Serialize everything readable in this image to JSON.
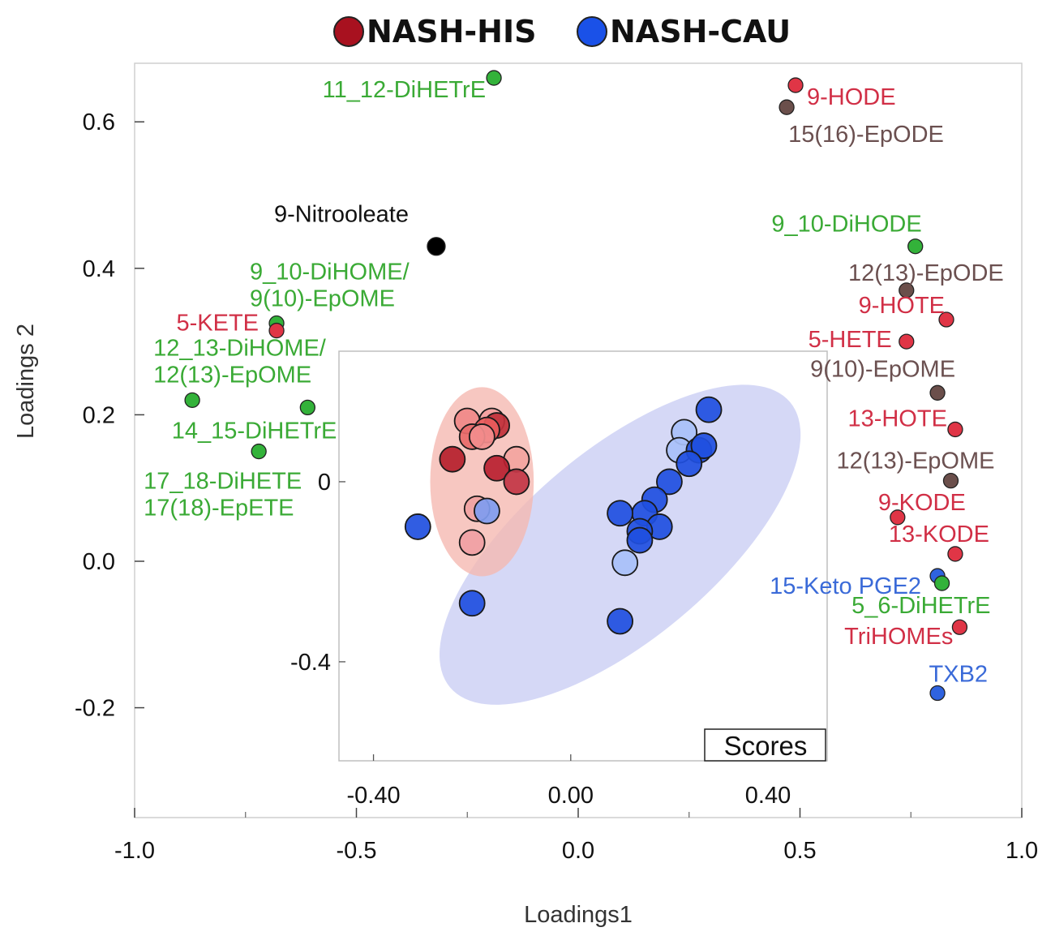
{
  "chart_data": {
    "type": "scatter",
    "title": "",
    "legend": {
      "placement": "top-center",
      "entries": [
        {
          "name": "NASH-HIS",
          "color": "#a8111f"
        },
        {
          "name": "NASH-CAU",
          "color": "#1a51e8"
        }
      ]
    },
    "loadings": {
      "xlabel": "Loadings1",
      "ylabel": "Loadings 2",
      "xlim": [
        -1.0,
        1.0
      ],
      "ylim": [
        -0.35,
        0.68
      ],
      "xticks": [
        -1.0,
        -0.5,
        0.0,
        0.5,
        1.0
      ],
      "xtick_labels": [
        "-1.0",
        "-0.5",
        "0.0",
        "0.5",
        "1.0"
      ],
      "xticks_minor": [
        -0.75,
        -0.25,
        0.25,
        0.75
      ],
      "yticks": [
        -0.2,
        0.0,
        0.2,
        0.4,
        0.6
      ],
      "ytick_labels": [
        "-0.2",
        "0.0",
        "0.2",
        "0.4",
        "0.6"
      ],
      "points": [
        {
          "label": "11_12-DiHETrE",
          "x": -0.19,
          "y": 0.66,
          "color": "#33b23a",
          "label_color": "#3aaa35"
        },
        {
          "label": "9-HODE",
          "x": 0.49,
          "y": 0.65,
          "color": "#e03546",
          "label_color": "#d12f46"
        },
        {
          "label": "15(16)-EpODE",
          "x": 0.47,
          "y": 0.62,
          "color": "#6b4f4b",
          "label_color": "#6b5050"
        },
        {
          "label": "9-Nitrooleate",
          "x": -0.32,
          "y": 0.43,
          "color": "#000000",
          "label_color": "#111111"
        },
        {
          "label": "9_10-DiHODE",
          "x": 0.76,
          "y": 0.43,
          "color": "#33b23a",
          "label_color": "#3aaa35"
        },
        {
          "label": "12(13)-EpODE",
          "x": 0.74,
          "y": 0.37,
          "color": "#6b4f4b",
          "label_color": "#6b5050"
        },
        {
          "label": "9_10-DiHOME/\n9(10)-EpOME",
          "x": -0.68,
          "y": 0.325,
          "color": "#33b23a",
          "label_color": "#3aaa35"
        },
        {
          "label": "5-KETE",
          "x": -0.68,
          "y": 0.315,
          "color": "#e03546",
          "label_color": "#d12f46"
        },
        {
          "label": "9-HOTE",
          "x": 0.83,
          "y": 0.33,
          "color": "#e03546",
          "label_color": "#d12f46"
        },
        {
          "label": "5-HETE",
          "x": 0.74,
          "y": 0.3,
          "color": "#e03546",
          "label_color": "#d12f46"
        },
        {
          "label": "12_13-DiHOME/\n12(13)-EpOME",
          "x": -0.87,
          "y": 0.22,
          "color": "#33b23a",
          "label_color": "#3aaa35"
        },
        {
          "label": "14_15-DiHETrE",
          "x": -0.61,
          "y": 0.21,
          "color": "#33b23a",
          "label_color": "#3aaa35"
        },
        {
          "label": "17_18-DiHETE\n17(18)-EpETE",
          "x": -0.72,
          "y": 0.15,
          "color": "#33b23a",
          "label_color": "#3aaa35"
        },
        {
          "label": "9(10)-EpOME",
          "x": 0.81,
          "y": 0.23,
          "color": "#6b4f4b",
          "label_color": "#6b5050"
        },
        {
          "label": "13-HOTE",
          "x": 0.85,
          "y": 0.18,
          "color": "#e03546",
          "label_color": "#d12f46"
        },
        {
          "label": "12(13)-EpOME",
          "x": 0.84,
          "y": 0.11,
          "color": "#6b4f4b",
          "label_color": "#6b5050"
        },
        {
          "label": "9-KODE",
          "x": 0.72,
          "y": 0.06,
          "color": "#e03546",
          "label_color": "#d12f46"
        },
        {
          "label": "13-KODE",
          "x": 0.85,
          "y": 0.01,
          "color": "#e03546",
          "label_color": "#d12f46"
        },
        {
          "label": "15-Keto PGE2",
          "x": 0.81,
          "y": -0.02,
          "color": "#2f63e0",
          "label_color": "#3a6ad8"
        },
        {
          "label": "5_6-DiHETrE",
          "x": 0.82,
          "y": -0.03,
          "color": "#33b23a",
          "label_color": "#3aaa35"
        },
        {
          "label": "TriHOMEs",
          "x": 0.86,
          "y": -0.09,
          "color": "#e03546",
          "label_color": "#d12f46"
        },
        {
          "label": "TXB2",
          "x": 0.81,
          "y": -0.18,
          "color": "#2f63e0",
          "label_color": "#3a6ad8"
        }
      ]
    },
    "scores": {
      "title": "Scores",
      "xlim": [
        -0.47,
        0.52
      ],
      "ylim": [
        -0.62,
        0.29
      ],
      "xticks": [
        -0.4,
        0.0,
        0.4
      ],
      "xtick_labels": [
        "-0.40",
        "0.00",
        "0.40"
      ],
      "yticks": [
        0.0,
        -0.4
      ],
      "ytick_labels": [
        "0",
        "-0.4"
      ],
      "ellipses": [
        {
          "group": "NASH-HIS",
          "cx": -0.18,
          "cy": 0.0,
          "rx": 0.105,
          "ry": 0.21,
          "angle": 0,
          "color": "#f5b7b0"
        },
        {
          "group": "NASH-CAU",
          "cx": 0.1,
          "cy": -0.14,
          "rx": 0.45,
          "ry": 0.21,
          "angle": 40,
          "color": "#c9cdf3"
        }
      ],
      "points": [
        {
          "group": "NASH-HIS",
          "x": -0.21,
          "y": 0.135,
          "color": "#f08888"
        },
        {
          "group": "NASH-HIS",
          "x": -0.16,
          "y": 0.135,
          "color": "#f4a0a0"
        },
        {
          "group": "NASH-HIS",
          "x": -0.15,
          "y": 0.125,
          "color": "#c0303a"
        },
        {
          "group": "NASH-HIS",
          "x": -0.17,
          "y": 0.115,
          "color": "#e85c5c"
        },
        {
          "group": "NASH-HIS",
          "x": -0.2,
          "y": 0.1,
          "color": "#e86a6a"
        },
        {
          "group": "NASH-HIS",
          "x": -0.18,
          "y": 0.1,
          "color": "#f28d8d"
        },
        {
          "group": "NASH-HIS",
          "x": -0.24,
          "y": 0.05,
          "color": "#b5202c"
        },
        {
          "group": "NASH-HIS",
          "x": -0.11,
          "y": 0.05,
          "color": "#f3a4a0"
        },
        {
          "group": "NASH-HIS",
          "x": -0.15,
          "y": 0.03,
          "color": "#b92030"
        },
        {
          "group": "NASH-HIS",
          "x": -0.11,
          "y": 0.0,
          "color": "#c23545"
        },
        {
          "group": "NASH-HIS",
          "x": -0.19,
          "y": -0.06,
          "color": "#f0a2a2"
        },
        {
          "group": "NASH-HIS",
          "x": -0.2,
          "y": -0.135,
          "color": "#f0a0a4"
        },
        {
          "group": "NASH-CAU",
          "x": -0.17,
          "y": -0.065,
          "color": "#7f9cf0"
        },
        {
          "group": "NASH-CAU",
          "x": -0.31,
          "y": -0.1,
          "color": "#1f4fe0"
        },
        {
          "group": "NASH-CAU",
          "x": -0.2,
          "y": -0.27,
          "color": "#1f4fe0"
        },
        {
          "group": "NASH-CAU",
          "x": 0.28,
          "y": 0.16,
          "color": "#1f4fe0"
        },
        {
          "group": "NASH-CAU",
          "x": 0.23,
          "y": 0.11,
          "color": "#a8c0f8"
        },
        {
          "group": "NASH-CAU",
          "x": 0.22,
          "y": 0.07,
          "color": "#a8c0f8"
        },
        {
          "group": "NASH-CAU",
          "x": 0.26,
          "y": 0.07,
          "color": "#1f4fe0"
        },
        {
          "group": "NASH-CAU",
          "x": 0.27,
          "y": 0.08,
          "color": "#1f4fe0"
        },
        {
          "group": "NASH-CAU",
          "x": 0.24,
          "y": 0.04,
          "color": "#1f4fe0"
        },
        {
          "group": "NASH-CAU",
          "x": 0.2,
          "y": 0.0,
          "color": "#1f4fe0"
        },
        {
          "group": "NASH-CAU",
          "x": 0.17,
          "y": -0.04,
          "color": "#1f4fe0"
        },
        {
          "group": "NASH-CAU",
          "x": 0.15,
          "y": -0.07,
          "color": "#1f4fe0"
        },
        {
          "group": "NASH-CAU",
          "x": 0.1,
          "y": -0.07,
          "color": "#1f4fe0"
        },
        {
          "group": "NASH-CAU",
          "x": 0.18,
          "y": -0.1,
          "color": "#1f4fe0"
        },
        {
          "group": "NASH-CAU",
          "x": 0.14,
          "y": -0.11,
          "color": "#1f4fe0"
        },
        {
          "group": "NASH-CAU",
          "x": 0.14,
          "y": -0.13,
          "color": "#1f4fe0"
        },
        {
          "group": "NASH-CAU",
          "x": 0.11,
          "y": -0.18,
          "color": "#a8c0f8"
        },
        {
          "group": "NASH-CAU",
          "x": 0.1,
          "y": -0.31,
          "color": "#1f4fe0"
        }
      ]
    }
  }
}
